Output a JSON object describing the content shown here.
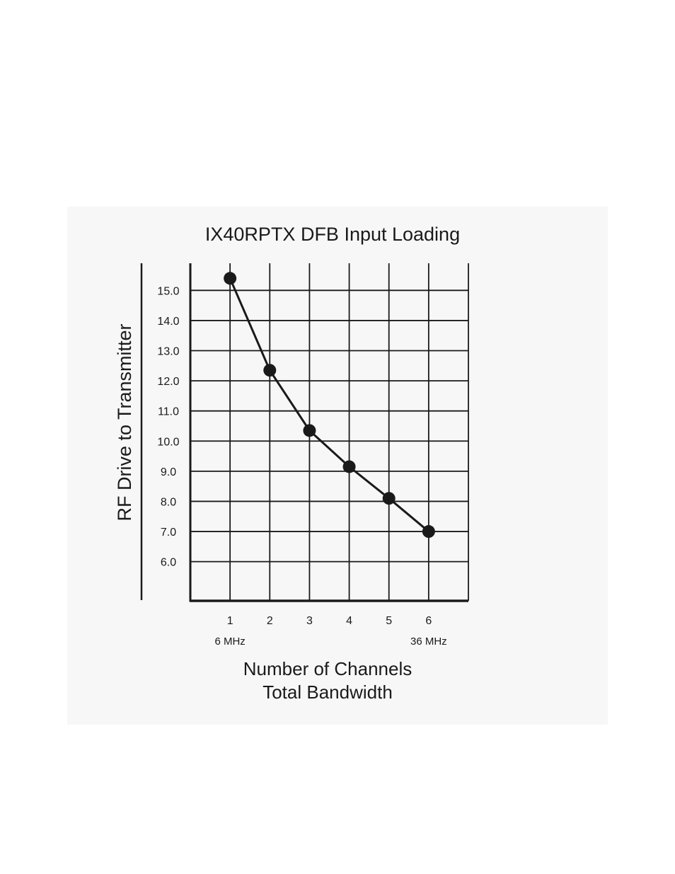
{
  "chart_data": {
    "type": "line",
    "title": "IX40RPTX DFB Input Loading",
    "ylabel": "RF Drive to Transmitter",
    "xlabel": "Number of Channels",
    "xlabel2": "Total Bandwidth",
    "x": [
      1,
      2,
      3,
      4,
      5,
      6
    ],
    "x_tick_labels": [
      "1",
      "2",
      "3",
      "4",
      "5",
      "6"
    ],
    "x_sub_labels": [
      {
        "x": 1,
        "label": "6 MHz"
      },
      {
        "x": 6,
        "label": "36 MHz"
      }
    ],
    "y_ticks": [
      6.0,
      7.0,
      8.0,
      9.0,
      10.0,
      11.0,
      12.0,
      13.0,
      14.0,
      15.0
    ],
    "y_tick_labels": [
      "6.0",
      "7.0",
      "8.0",
      "9.0",
      "10.0",
      "11.0",
      "12.0",
      "13.0",
      "14.0",
      "15.0"
    ],
    "series": [
      {
        "values": [
          15.4,
          12.35,
          10.35,
          9.15,
          8.1,
          7.0
        ]
      }
    ],
    "xlim": [
      0,
      7
    ],
    "ylim": [
      4.7,
      15.9
    ],
    "grid": true,
    "colors": {
      "line": "#1a1a1a",
      "panel": "#f7f7f7"
    }
  }
}
